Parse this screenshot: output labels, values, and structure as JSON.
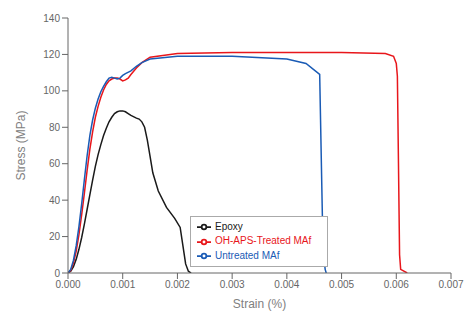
{
  "chart_data": {
    "type": "line",
    "title": "",
    "xlabel": "Strain (%)",
    "ylabel": "Stress (MPa)",
    "xlim": [
      0.0,
      0.007
    ],
    "ylim": [
      0,
      140
    ],
    "xticks": [
      {
        "value": 0.0,
        "label": "0.000"
      },
      {
        "value": 0.001,
        "label": "0.001"
      },
      {
        "value": 0.002,
        "label": "0.002"
      },
      {
        "value": 0.003,
        "label": "0.003"
      },
      {
        "value": 0.004,
        "label": "0.004"
      },
      {
        "value": 0.005,
        "label": "0.005"
      },
      {
        "value": 0.006,
        "label": "0.006"
      },
      {
        "value": 0.007,
        "label": "0.007"
      }
    ],
    "yticks": [
      0,
      20,
      40,
      60,
      80,
      100,
      120,
      140
    ],
    "grid": false,
    "legend": "lower center",
    "series": [
      {
        "name": "Epoxy",
        "color": "#1a1a1a",
        "x": [
          0.0,
          5e-05,
          0.0001,
          0.00015,
          0.0002,
          0.00025,
          0.0003,
          0.00035,
          0.0004,
          0.00045,
          0.0005,
          0.00055,
          0.0006,
          0.00065,
          0.0007,
          0.00075,
          0.0008,
          0.00085,
          0.0009,
          0.00095,
          0.001,
          0.00105,
          0.0011,
          0.00115,
          0.00125,
          0.0013,
          0.00135,
          0.0014,
          0.00145,
          0.0015,
          0.00155,
          0.00165,
          0.0018,
          0.00195,
          0.00205,
          0.0021,
          0.00215,
          0.0022,
          0.00225
        ],
        "values": [
          0.0,
          1.0,
          3.5,
          7.5,
          13.0,
          19.5,
          27.0,
          35.0,
          43.0,
          51.0,
          58.5,
          65.0,
          70.5,
          75.5,
          79.5,
          83.0,
          85.5,
          87.5,
          88.5,
          89.0,
          89.0,
          88.5,
          87.5,
          86.5,
          85.0,
          84.5,
          83.0,
          80.0,
          73.0,
          64.0,
          55.0,
          45.0,
          36.0,
          30.0,
          25.0,
          15.0,
          5.0,
          1.0,
          0.0
        ]
      },
      {
        "name": "OH-APS-Treated MAf",
        "color": "#e8161b",
        "x": [
          0.0,
          5e-05,
          0.0001,
          0.00015,
          0.0002,
          0.00025,
          0.0003,
          0.00035,
          0.0004,
          0.00045,
          0.0005,
          0.00055,
          0.0006,
          0.00065,
          0.0007,
          0.00075,
          0.0008,
          0.00085,
          0.0009,
          0.00095,
          0.001,
          0.00105,
          0.0011,
          0.00115,
          0.00125,
          0.00135,
          0.0015,
          0.002,
          0.003,
          0.004,
          0.005,
          0.0058,
          0.00595,
          0.006,
          0.00602,
          0.00604,
          0.00606,
          0.00608,
          0.0062
        ],
        "values": [
          0.0,
          1.5,
          5.5,
          12.0,
          21.0,
          32.0,
          44.0,
          56.5,
          68.0,
          77.5,
          85.5,
          91.5,
          96.5,
          100.5,
          103.5,
          105.5,
          106.5,
          107.0,
          107.0,
          106.5,
          105.5,
          106.0,
          107.0,
          109.0,
          112.5,
          115.5,
          118.5,
          120.5,
          121.0,
          121.0,
          121.0,
          120.5,
          119.0,
          115.0,
          108.0,
          60.0,
          10.0,
          2.0,
          0.0
        ]
      },
      {
        "name": "Untreated MAf",
        "color": "#1a5bb5",
        "x": [
          0.0,
          5e-05,
          0.0001,
          0.00015,
          0.0002,
          0.00025,
          0.0003,
          0.00035,
          0.0004,
          0.00045,
          0.0005,
          0.00055,
          0.0006,
          0.00065,
          0.0007,
          0.00075,
          0.0008,
          0.00085,
          0.0009,
          0.00095,
          0.001,
          0.00105,
          0.00115,
          0.00125,
          0.00135,
          0.0015,
          0.002,
          0.003,
          0.004,
          0.00435,
          0.0046,
          0.00465,
          0.00468,
          0.0047,
          0.00472
        ],
        "values": [
          0.0,
          2.0,
          7.0,
          15.0,
          25.5,
          38.0,
          51.5,
          64.5,
          75.5,
          84.0,
          90.5,
          95.5,
          99.5,
          102.5,
          105.0,
          107.0,
          107.5,
          107.0,
          106.5,
          107.0,
          108.5,
          109.5,
          111.0,
          113.5,
          115.5,
          117.5,
          119.0,
          119.0,
          117.5,
          115.0,
          109.0,
          30.0,
          8.0,
          2.0,
          0.0
        ]
      }
    ]
  }
}
